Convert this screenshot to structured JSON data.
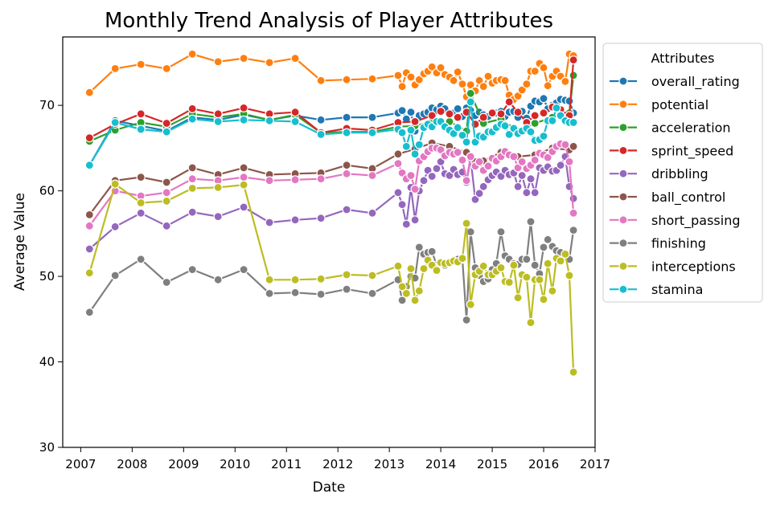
{
  "chart_data": {
    "type": "line",
    "title": "Monthly Trend Analysis of Player Attributes",
    "xlabel": "Date",
    "ylabel": "Average Value",
    "xlim": [
      2006.65,
      2017.0
    ],
    "ylim": [
      30,
      78
    ],
    "x_ticks": [
      "2007",
      "2008",
      "2009",
      "2010",
      "2011",
      "2012",
      "2013",
      "2014",
      "2015",
      "2016",
      "2017"
    ],
    "y_ticks": [
      "30",
      "40",
      "50",
      "60",
      "70"
    ],
    "legend_title": "Attributes",
    "legend_position": "outside-right",
    "grid": false,
    "series": [
      {
        "name": "overall_rating",
        "color": "#1f77b4",
        "x": [
          2007.17,
          2007.67,
          2008.17,
          2008.67,
          2009.17,
          2009.67,
          2010.17,
          2010.67,
          2011.17,
          2011.67,
          2012.17,
          2012.67,
          2013.17,
          2013.25,
          2013.33,
          2013.42,
          2013.5,
          2013.58,
          2013.67,
          2013.75,
          2013.83,
          2013.92,
          2014.0,
          2014.08,
          2014.17,
          2014.25,
          2014.33,
          2014.42,
          2014.5,
          2014.58,
          2014.67,
          2014.75,
          2014.83,
          2014.92,
          2015.0,
          2015.08,
          2015.17,
          2015.25,
          2015.33,
          2015.42,
          2015.5,
          2015.58,
          2015.67,
          2015.75,
          2015.83,
          2015.92,
          2016.0,
          2016.08,
          2016.17,
          2016.25,
          2016.33,
          2016.42,
          2016.5,
          2016.58
        ],
        "y": [
          63.0,
          68.2,
          67.6,
          67.0,
          68.6,
          68.3,
          68.9,
          68.3,
          68.8,
          68.3,
          68.6,
          68.6,
          69.1,
          69.4,
          68.4,
          69.2,
          67.0,
          68.8,
          69.0,
          69.2,
          69.7,
          69.5,
          69.9,
          69.6,
          68.9,
          69.1,
          69.6,
          68.7,
          69.7,
          69.4,
          68.8,
          69.2,
          68.9,
          68.7,
          69.2,
          69.1,
          69.3,
          68.7,
          69.2,
          69.3,
          68.6,
          69.3,
          68.5,
          69.9,
          70.5,
          70.4,
          70.8,
          69.6,
          70.0,
          70.3,
          70.7,
          70.6,
          70.5,
          69.1
        ]
      },
      {
        "name": "potential",
        "color": "#ff7f0e",
        "x": [
          2007.17,
          2007.67,
          2008.17,
          2008.67,
          2009.17,
          2009.67,
          2010.17,
          2010.67,
          2011.17,
          2011.67,
          2012.17,
          2012.67,
          2013.17,
          2013.25,
          2013.33,
          2013.42,
          2013.5,
          2013.58,
          2013.67,
          2013.75,
          2013.83,
          2013.92,
          2014.0,
          2014.08,
          2014.17,
          2014.25,
          2014.33,
          2014.42,
          2014.5,
          2014.58,
          2014.67,
          2014.75,
          2014.83,
          2014.92,
          2015.0,
          2015.08,
          2015.17,
          2015.25,
          2015.33,
          2015.42,
          2015.5,
          2015.58,
          2015.67,
          2015.75,
          2015.83,
          2015.92,
          2016.0,
          2016.08,
          2016.17,
          2016.25,
          2016.33,
          2016.42,
          2016.5,
          2016.58
        ],
        "y": [
          71.5,
          74.3,
          74.8,
          74.3,
          76.0,
          75.1,
          75.5,
          75.0,
          75.5,
          72.9,
          73.0,
          73.1,
          73.5,
          72.2,
          73.8,
          73.3,
          72.4,
          73.0,
          73.7,
          74.0,
          74.5,
          73.8,
          74.4,
          73.6,
          73.3,
          72.9,
          73.9,
          72.5,
          71.0,
          72.4,
          71.7,
          72.9,
          72.2,
          73.4,
          72.6,
          72.9,
          73.0,
          72.9,
          71.2,
          70.7,
          71.1,
          71.8,
          72.5,
          74.0,
          74.0,
          74.9,
          74.4,
          72.3,
          73.4,
          74.0,
          73.4,
          72.8,
          76.0,
          75.8
        ]
      },
      {
        "name": "acceleration",
        "color": "#2ca02c",
        "x": [
          2007.17,
          2007.67,
          2008.17,
          2008.67,
          2009.17,
          2009.67,
          2010.17,
          2010.67,
          2011.17,
          2011.67,
          2012.17,
          2012.67,
          2013.17,
          2013.5,
          2013.83,
          2014.17,
          2014.5,
          2014.58,
          2014.83,
          2015.17,
          2015.5,
          2015.83,
          2016.17,
          2016.5,
          2016.58
        ],
        "y": [
          65.8,
          67.1,
          68.0,
          67.5,
          69.0,
          68.6,
          69.0,
          68.3,
          68.9,
          66.8,
          66.9,
          66.9,
          67.5,
          67.6,
          68.1,
          68.1,
          67.0,
          71.4,
          67.9,
          68.4,
          67.0,
          67.9,
          68.6,
          69.1,
          73.5
        ]
      },
      {
        "name": "sprint_speed",
        "color": "#d62728",
        "x": [
          2007.17,
          2007.67,
          2008.17,
          2008.67,
          2009.17,
          2009.67,
          2010.17,
          2010.67,
          2011.17,
          2011.67,
          2012.17,
          2012.67,
          2013.17,
          2013.5,
          2013.83,
          2014.0,
          2014.17,
          2014.33,
          2014.5,
          2014.67,
          2014.83,
          2015.0,
          2015.17,
          2015.33,
          2015.5,
          2015.67,
          2015.83,
          2016.0,
          2016.17,
          2016.33,
          2016.5,
          2016.58
        ],
        "y": [
          66.2,
          67.8,
          69.0,
          67.9,
          69.6,
          69.0,
          69.7,
          69.0,
          69.2,
          66.8,
          67.3,
          67.1,
          68.0,
          68.1,
          68.8,
          69.3,
          69.0,
          68.6,
          69.2,
          67.8,
          68.6,
          69.1,
          69.0,
          70.4,
          69.2,
          68.0,
          68.8,
          69.1,
          69.8,
          69.5,
          68.8,
          75.3
        ]
      },
      {
        "name": "dribbling",
        "color": "#9467bd",
        "x": [
          2007.17,
          2007.67,
          2008.17,
          2008.67,
          2009.17,
          2009.67,
          2010.17,
          2010.67,
          2011.17,
          2011.67,
          2012.17,
          2012.67,
          2013.17,
          2013.25,
          2013.33,
          2013.42,
          2013.5,
          2013.58,
          2013.67,
          2013.75,
          2013.83,
          2013.92,
          2014.0,
          2014.08,
          2014.17,
          2014.25,
          2014.33,
          2014.42,
          2014.5,
          2014.58,
          2014.67,
          2014.75,
          2014.83,
          2014.92,
          2015.0,
          2015.08,
          2015.17,
          2015.25,
          2015.33,
          2015.42,
          2015.5,
          2015.58,
          2015.67,
          2015.75,
          2015.83,
          2015.92,
          2016.0,
          2016.08,
          2016.17,
          2016.25,
          2016.33,
          2016.42,
          2016.5,
          2016.58
        ],
        "y": [
          53.2,
          55.8,
          57.4,
          55.9,
          57.5,
          57.0,
          58.1,
          56.3,
          56.6,
          56.8,
          57.8,
          57.4,
          59.8,
          58.4,
          56.1,
          60.4,
          56.6,
          60.0,
          61.2,
          62.4,
          61.7,
          62.6,
          63.4,
          62.0,
          61.8,
          62.5,
          61.9,
          62.2,
          61.0,
          63.8,
          59.0,
          59.7,
          60.5,
          61.3,
          61.8,
          62.2,
          61.7,
          62.4,
          61.9,
          62.1,
          60.5,
          61.8,
          59.8,
          61.4,
          59.8,
          62.7,
          62.4,
          62.8,
          62.3,
          62.4,
          63.0,
          64.0,
          60.5,
          59.1
        ]
      },
      {
        "name": "ball_control",
        "color": "#8c564b",
        "x": [
          2007.17,
          2007.67,
          2008.17,
          2008.67,
          2009.17,
          2009.67,
          2010.17,
          2010.67,
          2011.17,
          2011.67,
          2012.17,
          2012.67,
          2013.17,
          2013.5,
          2013.83,
          2014.17,
          2014.5,
          2014.67,
          2014.83,
          2015.17,
          2015.5,
          2015.83,
          2016.17,
          2016.5,
          2016.58
        ],
        "y": [
          57.2,
          61.2,
          61.6,
          61.0,
          62.7,
          61.9,
          62.7,
          61.9,
          62.0,
          62.1,
          63.0,
          62.6,
          64.3,
          64.9,
          65.6,
          65.2,
          64.5,
          63.4,
          63.5,
          64.5,
          64.0,
          64.2,
          65.0,
          64.8,
          65.2
        ]
      },
      {
        "name": "short_passing",
        "color": "#e377c2",
        "x": [
          2007.17,
          2007.67,
          2008.17,
          2008.67,
          2009.17,
          2009.67,
          2010.17,
          2010.67,
          2011.17,
          2011.67,
          2012.17,
          2012.67,
          2013.17,
          2013.25,
          2013.33,
          2013.42,
          2013.5,
          2013.58,
          2013.67,
          2013.75,
          2013.83,
          2013.92,
          2014.0,
          2014.08,
          2014.17,
          2014.25,
          2014.33,
          2014.42,
          2014.5,
          2014.58,
          2014.67,
          2014.75,
          2014.83,
          2014.92,
          2015.0,
          2015.08,
          2015.17,
          2015.25,
          2015.33,
          2015.42,
          2015.5,
          2015.58,
          2015.67,
          2015.75,
          2015.83,
          2015.92,
          2016.0,
          2016.08,
          2016.17,
          2016.25,
          2016.33,
          2016.42,
          2016.5,
          2016.58
        ],
        "y": [
          55.9,
          60.0,
          59.4,
          59.8,
          61.4,
          61.2,
          61.6,
          61.2,
          61.3,
          61.4,
          62.0,
          61.8,
          63.2,
          62.1,
          61.4,
          61.8,
          60.2,
          63.5,
          64.0,
          64.6,
          65.0,
          65.0,
          64.8,
          64.1,
          64.5,
          64.3,
          64.5,
          63.6,
          61.2,
          64.0,
          62.9,
          63.4,
          62.4,
          62.9,
          63.8,
          63.5,
          64.0,
          64.6,
          64.2,
          64.0,
          62.7,
          63.4,
          62.6,
          63.0,
          63.6,
          64.4,
          64.2,
          63.9,
          64.6,
          65.2,
          65.5,
          65.4,
          63.4,
          57.4
        ]
      },
      {
        "name": "finishing",
        "color": "#7f7f7f",
        "x": [
          2007.17,
          2007.67,
          2008.17,
          2008.67,
          2009.17,
          2009.67,
          2010.17,
          2010.67,
          2011.17,
          2011.67,
          2012.17,
          2012.67,
          2013.17,
          2013.25,
          2013.33,
          2013.42,
          2013.5,
          2013.58,
          2013.67,
          2013.75,
          2013.83,
          2013.92,
          2014.0,
          2014.08,
          2014.17,
          2014.25,
          2014.33,
          2014.42,
          2014.5,
          2014.58,
          2014.67,
          2014.75,
          2014.83,
          2014.92,
          2015.0,
          2015.08,
          2015.17,
          2015.25,
          2015.33,
          2015.42,
          2015.5,
          2015.58,
          2015.67,
          2015.75,
          2015.83,
          2015.92,
          2016.0,
          2016.08,
          2016.17,
          2016.25,
          2016.33,
          2016.42,
          2016.5,
          2016.58
        ],
        "y": [
          45.8,
          50.1,
          52.0,
          49.3,
          50.8,
          49.6,
          50.8,
          48.0,
          48.1,
          47.9,
          48.5,
          48.0,
          49.6,
          47.2,
          48.8,
          50.0,
          49.8,
          53.4,
          52.6,
          52.8,
          52.9,
          51.3,
          51.5,
          51.3,
          51.6,
          51.8,
          52.0,
          52.0,
          44.9,
          55.2,
          51.0,
          50.1,
          49.4,
          49.7,
          50.8,
          51.5,
          55.2,
          52.4,
          52.0,
          51.5,
          51.4,
          52.0,
          52.0,
          56.4,
          51.3,
          50.3,
          53.4,
          54.3,
          53.5,
          53.0,
          52.8,
          52.4,
          52.0,
          55.4
        ]
      },
      {
        "name": "interceptions",
        "color": "#bcbd22",
        "x": [
          2007.17,
          2007.67,
          2008.17,
          2008.67,
          2009.17,
          2009.67,
          2010.17,
          2010.67,
          2011.17,
          2011.67,
          2012.17,
          2012.67,
          2013.17,
          2013.25,
          2013.33,
          2013.42,
          2013.5,
          2013.58,
          2013.67,
          2013.75,
          2013.83,
          2013.92,
          2014.0,
          2014.08,
          2014.17,
          2014.25,
          2014.33,
          2014.42,
          2014.5,
          2014.58,
          2014.67,
          2014.75,
          2014.83,
          2014.92,
          2015.0,
          2015.08,
          2015.17,
          2015.25,
          2015.33,
          2015.42,
          2015.5,
          2015.58,
          2015.67,
          2015.75,
          2015.83,
          2015.92,
          2016.0,
          2016.08,
          2016.17,
          2016.25,
          2016.33,
          2016.42,
          2016.5,
          2016.58
        ],
        "y": [
          50.4,
          60.8,
          58.6,
          58.8,
          60.3,
          60.4,
          60.7,
          49.6,
          49.6,
          49.7,
          50.2,
          50.1,
          51.2,
          48.8,
          48.0,
          50.9,
          47.2,
          48.3,
          50.9,
          51.9,
          51.3,
          50.7,
          51.6,
          51.5,
          51.6,
          51.8,
          51.7,
          52.1,
          56.2,
          46.7,
          50.2,
          50.6,
          51.2,
          50.2,
          50.2,
          50.6,
          51.0,
          49.4,
          49.3,
          51.3,
          47.5,
          50.2,
          49.9,
          44.6,
          49.6,
          49.6,
          47.3,
          51.5,
          48.3,
          52.1,
          51.8,
          52.6,
          50.1,
          38.8
        ]
      },
      {
        "name": "stamina",
        "color": "#17becf",
        "x": [
          2007.17,
          2007.67,
          2008.17,
          2008.67,
          2009.17,
          2009.67,
          2010.17,
          2010.67,
          2011.17,
          2011.67,
          2012.17,
          2012.67,
          2013.17,
          2013.25,
          2013.33,
          2013.42,
          2013.5,
          2013.58,
          2013.67,
          2013.75,
          2013.83,
          2013.92,
          2014.0,
          2014.08,
          2014.17,
          2014.25,
          2014.33,
          2014.42,
          2014.5,
          2014.58,
          2014.67,
          2014.75,
          2014.83,
          2014.92,
          2015.0,
          2015.08,
          2015.17,
          2015.25,
          2015.33,
          2015.42,
          2015.5,
          2015.58,
          2015.67,
          2015.75,
          2015.83,
          2015.92,
          2016.0,
          2016.08,
          2016.17,
          2016.25,
          2016.33,
          2016.42,
          2016.5,
          2016.58
        ],
        "y": [
          63.0,
          68.0,
          67.2,
          66.9,
          68.4,
          68.1,
          68.3,
          68.2,
          68.1,
          66.6,
          66.8,
          66.8,
          67.2,
          66.8,
          65.2,
          67.1,
          64.3,
          65.4,
          67.4,
          67.8,
          67.5,
          68.1,
          68.1,
          67.5,
          67.1,
          66.7,
          67.4,
          66.5,
          65.7,
          70.4,
          65.7,
          66.4,
          66.3,
          66.9,
          66.9,
          67.4,
          67.8,
          67.6,
          66.6,
          67.3,
          66.7,
          67.0,
          67.3,
          66.9,
          65.9,
          66.0,
          66.4,
          68.2,
          68.2,
          69.7,
          68.8,
          68.2,
          68.0,
          68.0
        ]
      }
    ]
  }
}
